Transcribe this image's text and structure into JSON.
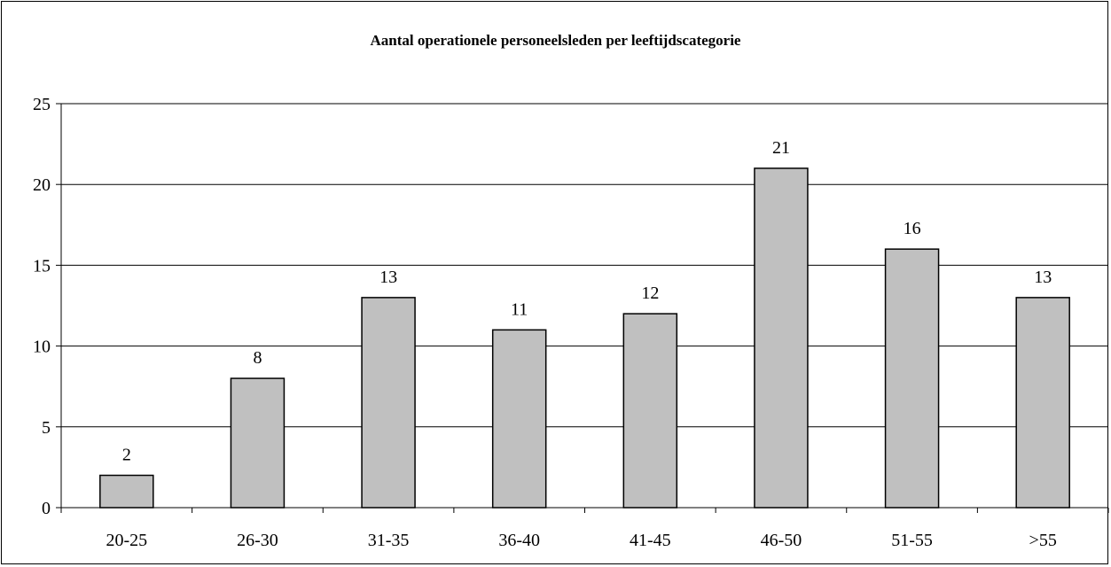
{
  "chart_data": {
    "type": "bar",
    "title": "Aantal operationele personeelsleden per leeftijdscategorie",
    "xlabel": "",
    "ylabel": "",
    "categories": [
      "20-25",
      "26-30",
      "31-35",
      "36-40",
      "41-45",
      "46-50",
      "51-55",
      ">55"
    ],
    "values": [
      2,
      8,
      13,
      11,
      12,
      21,
      16,
      13
    ],
    "ylim": [
      0,
      25
    ],
    "yticks": [
      0,
      5,
      10,
      15,
      20,
      25
    ],
    "grid": true,
    "data_labels": true,
    "legend": "none",
    "bar_color": "#C0C0C0"
  }
}
